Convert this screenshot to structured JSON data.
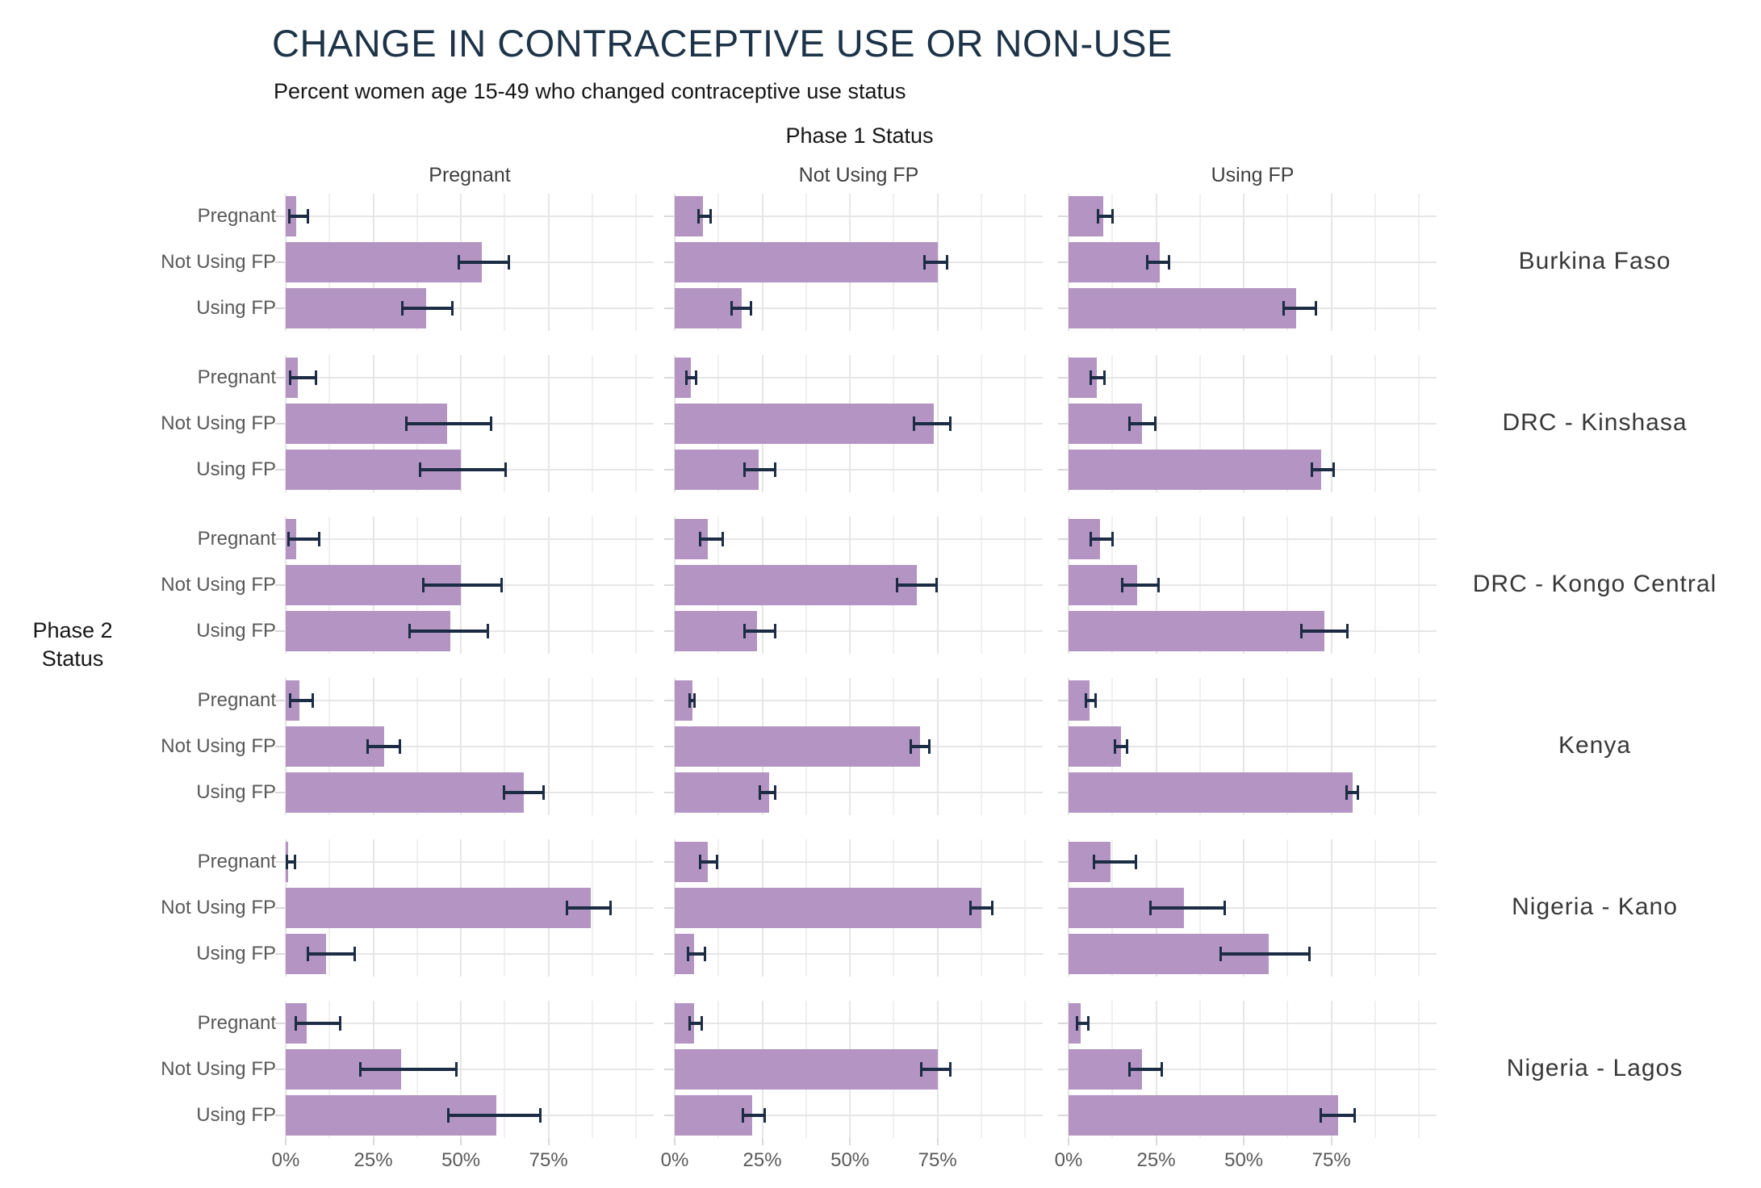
{
  "title": "CHANGE IN CONTRACEPTIVE USE OR NON-USE",
  "subtitle": "Percent women age 15-49 who changed contraceptive use status",
  "facet_header": {
    "title": "Phase 1 Status"
  },
  "left_axis": {
    "line1": "Phase 2",
    "line2": "Status"
  },
  "colors": {
    "bar": "#b394c2",
    "error_bar": "#1c2c44",
    "title": "#1d3348",
    "text_dark": "#161616",
    "grid_major": "#e6e6e6",
    "grid_minor": "#f0f0f0"
  },
  "chart_data": {
    "type": "bar",
    "orientation": "horizontal",
    "title": "CHANGE IN CONTRACEPTIVE USE OR NON-USE",
    "subtitle": "Percent women age 15-49 who changed contraceptive use status",
    "facet_column_axis_title": "Phase 1 Status",
    "facet_row_axis_title": "Phase 2 Status",
    "columns": [
      "Pregnant",
      "Not Using FP",
      "Using FP"
    ],
    "bar_categories": [
      "Pregnant",
      "Not Using FP",
      "Using FP"
    ],
    "x_tick_labels": [
      "0%",
      "25%",
      "50%",
      "75%"
    ],
    "x_tick_values": [
      0,
      25,
      50,
      75
    ],
    "xlim": [
      0,
      105
    ],
    "grid": "on",
    "legend": "none",
    "unit": "percent",
    "countries": [
      {
        "name": "Burkina Faso",
        "panels": [
          {
            "phase1": "Pregnant",
            "values": [
              3,
              56,
              40
            ],
            "ci_low": [
              0.7,
              49,
              33
            ],
            "ci_high": [
              6.6,
              64,
              48
            ]
          },
          {
            "phase1": "Not Using FP",
            "values": [
              8,
              75,
              19
            ],
            "ci_low": [
              6.5,
              71,
              16
            ],
            "ci_high": [
              10.5,
              78,
              22
            ]
          },
          {
            "phase1": "Using FP",
            "values": [
              10,
              26,
              65
            ],
            "ci_low": [
              8,
              22,
              61
            ],
            "ci_high": [
              13,
              29,
              71
            ]
          }
        ]
      },
      {
        "name": "DRC - Kinshasa",
        "panels": [
          {
            "phase1": "Pregnant",
            "values": [
              3.5,
              46,
              50
            ],
            "ci_low": [
              1,
              34,
              38
            ],
            "ci_high": [
              9,
              59,
              63
            ]
          },
          {
            "phase1": "Not Using FP",
            "values": [
              4.5,
              74,
              24
            ],
            "ci_low": [
              3,
              68,
              19.5
            ],
            "ci_high": [
              6.5,
              79,
              29
            ]
          },
          {
            "phase1": "Using FP",
            "values": [
              8,
              21,
              72
            ],
            "ci_low": [
              6,
              17,
              69
            ],
            "ci_high": [
              10.5,
              25,
              76
            ]
          }
        ]
      },
      {
        "name": "DRC - Kongo Central",
        "panels": [
          {
            "phase1": "Pregnant",
            "values": [
              3,
              50,
              47
            ],
            "ci_low": [
              0.5,
              39,
              35
            ],
            "ci_high": [
              10,
              62,
              58
            ]
          },
          {
            "phase1": "Not Using FP",
            "values": [
              9.5,
              69,
              23.5
            ],
            "ci_low": [
              7,
              63,
              19.5
            ],
            "ci_high": [
              14,
              75,
              29
            ]
          },
          {
            "phase1": "Using FP",
            "values": [
              9,
              19.5,
              73
            ],
            "ci_low": [
              6,
              15,
              66
            ],
            "ci_high": [
              13,
              26,
              80
            ]
          }
        ]
      },
      {
        "name": "Kenya",
        "panels": [
          {
            "phase1": "Pregnant",
            "values": [
              4,
              28,
              68
            ],
            "ci_low": [
              1,
              23,
              62
            ],
            "ci_high": [
              8,
              33,
              74
            ]
          },
          {
            "phase1": "Not Using FP",
            "values": [
              5,
              70,
              27
            ],
            "ci_low": [
              4,
              67,
              24
            ],
            "ci_high": [
              6,
              73,
              29
            ]
          },
          {
            "phase1": "Using FP",
            "values": [
              6,
              15,
              81
            ],
            "ci_low": [
              4.5,
              13,
              79
            ],
            "ci_high": [
              8,
              17,
              83
            ]
          }
        ]
      },
      {
        "name": "Nigeria - Kano",
        "panels": [
          {
            "phase1": "Pregnant",
            "values": [
              0.6,
              87,
              11.5
            ],
            "ci_low": [
              0,
              80,
              6
            ],
            "ci_high": [
              3,
              93,
              20
            ]
          },
          {
            "phase1": "Not Using FP",
            "values": [
              9.5,
              87.5,
              5.5
            ],
            "ci_low": [
              7,
              84,
              3.5
            ],
            "ci_high": [
              12.5,
              91,
              9
            ]
          },
          {
            "phase1": "Using FP",
            "values": [
              12,
              33,
              57
            ],
            "ci_low": [
              7,
              23,
              43
            ],
            "ci_high": [
              19.5,
              45,
              69
            ]
          }
        ]
      },
      {
        "name": "Nigeria - Lagos",
        "panels": [
          {
            "phase1": "Pregnant",
            "values": [
              6,
              33,
              60
            ],
            "ci_low": [
              2.5,
              21,
              46
            ],
            "ci_high": [
              16,
              49,
              73
            ]
          },
          {
            "phase1": "Not Using FP",
            "values": [
              5.5,
              75,
              22
            ],
            "ci_low": [
              4,
              70,
              19
            ],
            "ci_high": [
              8,
              79,
              26
            ]
          },
          {
            "phase1": "Using FP",
            "values": [
              3.5,
              21,
              77
            ],
            "ci_low": [
              2,
              17,
              71.5
            ],
            "ci_high": [
              6,
              27,
              82
            ]
          }
        ]
      }
    ]
  }
}
